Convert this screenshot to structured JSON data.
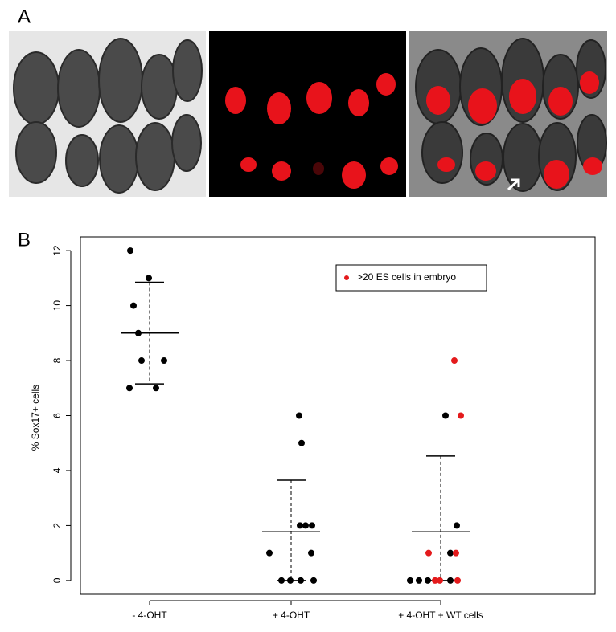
{
  "panel_labels": [
    "A",
    "B"
  ],
  "chart_data": {
    "type": "strip",
    "ylabel": "% Sox17+ cells",
    "categories": [
      "- 4-OHT",
      "+ 4-OHT",
      "+ 4-OHT + WT cells"
    ],
    "series": [
      {
        "color": "#000000",
        "values": [
          [
            12,
            11,
            10,
            9,
            8,
            8,
            7,
            7
          ],
          [
            6,
            5,
            2,
            2,
            2,
            1,
            1,
            0,
            0,
            0,
            0
          ],
          [
            6,
            2,
            1,
            0,
            0,
            0,
            0
          ]
        ]
      },
      {
        "name": ">20 ES cells in embryo",
        "color": "#e41a1c",
        "values": [
          [],
          [],
          [
            8,
            6,
            1,
            1,
            0,
            0,
            0
          ]
        ]
      }
    ],
    "means": [
      9,
      1.77,
      1.77
    ],
    "upper": [
      10.85,
      3.65,
      4.53
    ],
    "lower": [
      7.15,
      0,
      0
    ],
    "ylim": [
      -0.5,
      12.5
    ],
    "yticks": [
      0,
      2,
      4,
      6,
      8,
      10,
      12
    ],
    "legend": "top-right"
  }
}
